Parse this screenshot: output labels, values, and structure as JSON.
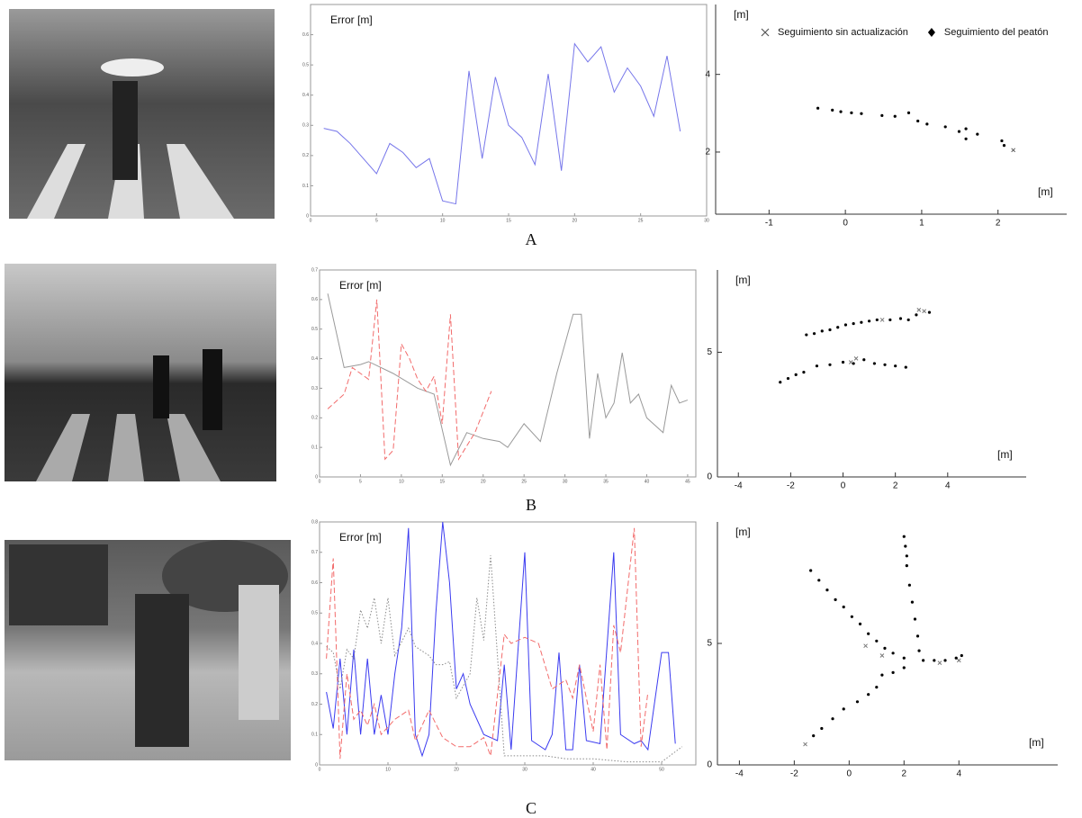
{
  "panel_labels": [
    "A",
    "B",
    "C"
  ],
  "chart_data": [
    {
      "type": "line",
      "ylabel": "Error [m]",
      "xlim": [
        0,
        30
      ],
      "xticks": [
        0,
        5,
        10,
        15,
        20,
        25,
        30
      ],
      "ylim": [
        0,
        0.7
      ],
      "yticks": [
        0,
        0.1,
        0.2,
        0.3,
        0.4,
        0.5,
        0.6
      ],
      "series": [
        {
          "color": "#7676ea",
          "style": "solid",
          "x": [
            1,
            2,
            3,
            4,
            5,
            6,
            7,
            8,
            9,
            10,
            11,
            12,
            13,
            14,
            15,
            16,
            17,
            18,
            19,
            20,
            21,
            22,
            23,
            24,
            25,
            26,
            27,
            28
          ],
          "values": [
            0.29,
            0.28,
            0.24,
            0.19,
            0.14,
            0.24,
            0.21,
            0.16,
            0.19,
            0.05,
            0.04,
            0.48,
            0.19,
            0.46,
            0.3,
            0.26,
            0.17,
            0.47,
            0.15,
            0.57,
            0.51,
            0.56,
            0.41,
            0.49,
            0.43,
            0.33,
            0.53,
            0.28
          ]
        }
      ]
    },
    {
      "type": "scatter",
      "xlabel": "[m]",
      "ylabel": "[m]",
      "xlim": [
        -1.7,
        2.9
      ],
      "xticks": [
        -1,
        0,
        1,
        2
      ],
      "ylim": [
        0.4,
        5.8
      ],
      "yticks": [
        2,
        4
      ],
      "series": [
        {
          "name": "Seguimiento sin actualización",
          "marker": "x",
          "color": "#555555",
          "x": [
            2.2
          ],
          "values": [
            2.05
          ]
        },
        {
          "name": "Seguimiento del peatón",
          "marker": "dot",
          "color": "#000000",
          "x": [
            -0.36,
            -0.17,
            -0.06,
            0.08,
            0.21,
            0.48,
            0.65,
            0.83,
            0.95,
            1.07,
            1.31,
            1.49,
            1.58,
            1.58,
            1.73,
            2.05,
            2.08
          ],
          "values": [
            3.13,
            3.08,
            3.04,
            3.01,
            2.99,
            2.94,
            2.92,
            3.01,
            2.8,
            2.72,
            2.65,
            2.53,
            2.6,
            2.34,
            2.46,
            2.29,
            2.17
          ]
        }
      ]
    },
    {
      "type": "line",
      "ylabel": "Error [m]",
      "xlim": [
        0,
        46
      ],
      "xticks": [
        0,
        5,
        10,
        15,
        20,
        25,
        30,
        35,
        40,
        45
      ],
      "ylim": [
        0,
        0.7
      ],
      "yticks": [
        0,
        0.1,
        0.2,
        0.3,
        0.4,
        0.5,
        0.6,
        0.7
      ],
      "series": [
        {
          "color": "#9a9a9a",
          "style": "solid",
          "x": [
            1,
            3,
            5,
            6,
            9,
            12,
            14,
            16,
            18,
            20,
            22,
            23,
            25,
            27,
            29,
            31,
            32,
            33,
            34,
            35,
            36,
            37,
            38,
            39,
            40,
            42,
            43,
            44,
            45
          ],
          "values": [
            0.62,
            0.37,
            0.38,
            0.39,
            0.35,
            0.3,
            0.28,
            0.04,
            0.15,
            0.13,
            0.12,
            0.1,
            0.18,
            0.12,
            0.35,
            0.55,
            0.55,
            0.13,
            0.35,
            0.2,
            0.25,
            0.42,
            0.25,
            0.28,
            0.2,
            0.15,
            0.31,
            0.25,
            0.26
          ]
        },
        {
          "color": "#f26b6b",
          "style": "dashed",
          "x": [
            1,
            3,
            4,
            6,
            7,
            8,
            9,
            10,
            11,
            12,
            13,
            14,
            15,
            16,
            17,
            19,
            21
          ],
          "values": [
            0.23,
            0.28,
            0.37,
            0.33,
            0.6,
            0.06,
            0.09,
            0.45,
            0.4,
            0.33,
            0.29,
            0.34,
            0.18,
            0.55,
            0.06,
            0.15,
            0.29
          ]
        }
      ]
    },
    {
      "type": "scatter",
      "xlabel": "[m]",
      "ylabel": "[m]",
      "xlim": [
        -4.8,
        7
      ],
      "xticks": [
        -4,
        -2,
        0,
        2,
        4
      ],
      "ylim": [
        0,
        8.3
      ],
      "yticks": [
        0,
        5
      ],
      "series": [
        {
          "marker": "x",
          "color": "#777777",
          "x": [
            0.5,
            1.5,
            2.9,
            3.1,
            0.3
          ],
          "values": [
            4.75,
            6.3,
            6.7,
            6.65,
            4.6
          ]
        },
        {
          "marker": "dot",
          "color": "#000000",
          "x": [
            -1.4,
            -1.1,
            -0.8,
            -0.5,
            -0.2,
            0.1,
            0.4,
            0.7,
            1.0,
            1.3,
            1.8,
            2.2,
            2.5,
            2.8,
            3.3,
            -2.4,
            -2.1,
            -1.8,
            -1.5,
            -1.0,
            -0.5,
            0,
            0.4,
            0.8,
            1.2,
            1.6,
            2.0,
            2.4
          ],
          "values": [
            5.7,
            5.75,
            5.85,
            5.9,
            6.0,
            6.1,
            6.15,
            6.2,
            6.25,
            6.3,
            6.3,
            6.35,
            6.3,
            6.5,
            6.6,
            3.8,
            3.95,
            4.1,
            4.2,
            4.45,
            4.5,
            4.6,
            4.55,
            4.7,
            4.55,
            4.5,
            4.45,
            4.4
          ]
        }
      ]
    },
    {
      "type": "line",
      "ylabel": "Error [m]",
      "xlim": [
        0,
        55
      ],
      "xticks": [
        0,
        10,
        20,
        30,
        40,
        50
      ],
      "ylim": [
        0,
        0.8
      ],
      "yticks": [
        0,
        0.1,
        0.2,
        0.3,
        0.4,
        0.5,
        0.6,
        0.7,
        0.8
      ],
      "series": [
        {
          "color": "#3b3bf0",
          "style": "solid",
          "x": [
            1,
            2,
            3,
            4,
            5,
            6,
            7,
            8,
            9,
            10,
            11,
            12,
            13,
            14,
            15,
            16,
            17,
            18,
            19,
            20,
            21,
            22,
            24,
            26,
            27,
            28,
            30,
            31,
            33,
            34,
            35,
            36,
            37,
            38,
            39,
            41,
            43,
            44,
            46,
            47,
            48,
            50,
            51,
            52
          ],
          "values": [
            0.24,
            0.12,
            0.35,
            0.1,
            0.38,
            0.1,
            0.35,
            0.1,
            0.23,
            0.1,
            0.3,
            0.45,
            0.78,
            0.1,
            0.03,
            0.1,
            0.5,
            0.8,
            0.6,
            0.25,
            0.3,
            0.2,
            0.1,
            0.08,
            0.33,
            0.05,
            0.7,
            0.08,
            0.05,
            0.1,
            0.37,
            0.05,
            0.05,
            0.33,
            0.08,
            0.07,
            0.7,
            0.1,
            0.07,
            0.08,
            0.05,
            0.37,
            0.37,
            0.07
          ]
        },
        {
          "color": "#f26b6b",
          "style": "dashed",
          "x": [
            1,
            2,
            3,
            4,
            5,
            6,
            7,
            8,
            9,
            11,
            13,
            14,
            16,
            18,
            20,
            22,
            24,
            25,
            27,
            28,
            30,
            32,
            34,
            36,
            37,
            38,
            40,
            41,
            42,
            43,
            44,
            46,
            47,
            48
          ],
          "values": [
            0.35,
            0.68,
            0.02,
            0.3,
            0.15,
            0.18,
            0.13,
            0.2,
            0.1,
            0.15,
            0.18,
            0.08,
            0.18,
            0.09,
            0.06,
            0.06,
            0.09,
            0.03,
            0.43,
            0.4,
            0.42,
            0.4,
            0.25,
            0.28,
            0.22,
            0.33,
            0.11,
            0.33,
            0.05,
            0.46,
            0.37,
            0.78,
            0.06,
            0.24
          ]
        },
        {
          "color": "#8a8a8a",
          "style": "dotted",
          "x": [
            1,
            2,
            3,
            4,
            5,
            6,
            7,
            8,
            9,
            10,
            11,
            13,
            14,
            16,
            17,
            18,
            19,
            20,
            22,
            23,
            24,
            25,
            27,
            28,
            30,
            33,
            36,
            40,
            45,
            50,
            53
          ],
          "values": [
            0.39,
            0.37,
            0.25,
            0.38,
            0.35,
            0.51,
            0.45,
            0.55,
            0.4,
            0.55,
            0.36,
            0.45,
            0.39,
            0.36,
            0.33,
            0.33,
            0.34,
            0.22,
            0.3,
            0.55,
            0.41,
            0.69,
            0.03,
            0.03,
            0.03,
            0.03,
            0.02,
            0.02,
            0.01,
            0.01,
            0.06
          ]
        }
      ]
    },
    {
      "type": "scatter",
      "xlabel": "[m]",
      "ylabel": "[m]",
      "xlim": [
        -4.8,
        7.6
      ],
      "xticks": [
        -4,
        -2,
        0,
        2,
        4
      ],
      "ylim": [
        0,
        10
      ],
      "yticks": [
        0,
        5
      ],
      "series": [
        {
          "marker": "x",
          "color": "#777777",
          "x": [
            -1.6,
            0.6,
            1.2,
            3.3,
            4.0
          ],
          "values": [
            0.85,
            4.9,
            4.5,
            4.2,
            4.3
          ]
        },
        {
          "marker": "dot",
          "color": "#000000",
          "x": [
            -1.4,
            -1.1,
            -0.8,
            -0.5,
            -0.2,
            0.1,
            0.4,
            0.7,
            1.0,
            1.3,
            1.6,
            2.0,
            2.0,
            2.05,
            2.1,
            2.1,
            2.2,
            2.3,
            2.4,
            2.5,
            2.55,
            -1.3,
            -1.0,
            -0.6,
            -0.2,
            0.3,
            0.7,
            1.0,
            1.2,
            1.6,
            2.0,
            2.7,
            3.1,
            3.5,
            3.9,
            4.1
          ],
          "values": [
            8,
            7.6,
            7.2,
            6.8,
            6.5,
            6.1,
            5.8,
            5.4,
            5.1,
            4.8,
            4.6,
            4.4,
            9.4,
            9.0,
            8.6,
            8.2,
            7.4,
            6.7,
            6.0,
            5.3,
            4.7,
            1.2,
            1.5,
            1.9,
            2.3,
            2.6,
            2.9,
            3.2,
            3.7,
            3.8,
            4.0,
            4.3,
            4.3,
            4.3,
            4.4,
            4.5
          ]
        }
      ]
    }
  ]
}
